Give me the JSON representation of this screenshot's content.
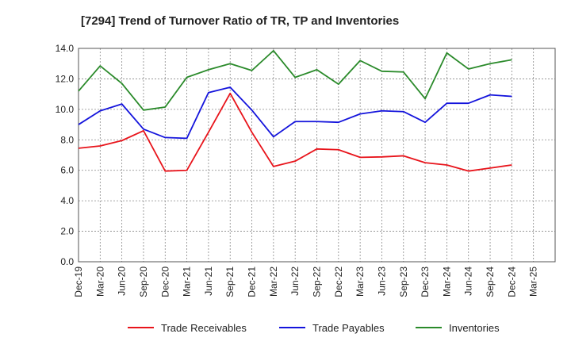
{
  "chart_data": {
    "type": "line",
    "title": "[7294]  Trend of Turnover Ratio of TR, TP and Inventories",
    "xlabel": "",
    "ylabel": "",
    "ylim": [
      0,
      14
    ],
    "yticks": [
      "0.0",
      "2.0",
      "4.0",
      "6.0",
      "8.0",
      "10.0",
      "12.0",
      "14.0"
    ],
    "categories": [
      "Dec-19",
      "Mar-20",
      "Jun-20",
      "Sep-20",
      "Dec-20",
      "Mar-21",
      "Jun-21",
      "Sep-21",
      "Dec-21",
      "Mar-22",
      "Jun-22",
      "Sep-22",
      "Dec-22",
      "Mar-23",
      "Jun-23",
      "Sep-23",
      "Dec-23",
      "Mar-24",
      "Jun-24",
      "Sep-24",
      "Dec-24",
      "Mar-25"
    ],
    "grid": true,
    "legend_position": "bottom",
    "series": [
      {
        "name": "Trade Receivables",
        "color": "#e8141b",
        "values": [
          7.45,
          7.6,
          7.95,
          8.6,
          5.95,
          6.0,
          8.5,
          11.05,
          8.5,
          6.25,
          6.6,
          7.4,
          7.35,
          6.85,
          6.88,
          6.95,
          6.5,
          6.35,
          5.95,
          6.15,
          6.35,
          null
        ]
      },
      {
        "name": "Trade Payables",
        "color": "#1414dc",
        "values": [
          9.0,
          9.9,
          10.35,
          8.7,
          8.15,
          8.1,
          11.1,
          11.45,
          9.95,
          8.2,
          9.2,
          9.2,
          9.15,
          9.7,
          9.9,
          9.85,
          9.15,
          10.4,
          10.4,
          10.95,
          10.85,
          null
        ]
      },
      {
        "name": "Inventories",
        "color": "#2a8a2a",
        "values": [
          11.2,
          12.85,
          11.7,
          9.95,
          10.15,
          12.1,
          12.6,
          13.0,
          12.55,
          13.85,
          12.1,
          12.6,
          11.65,
          13.2,
          12.5,
          12.45,
          10.7,
          13.7,
          12.65,
          13.0,
          13.25,
          null
        ]
      }
    ]
  }
}
